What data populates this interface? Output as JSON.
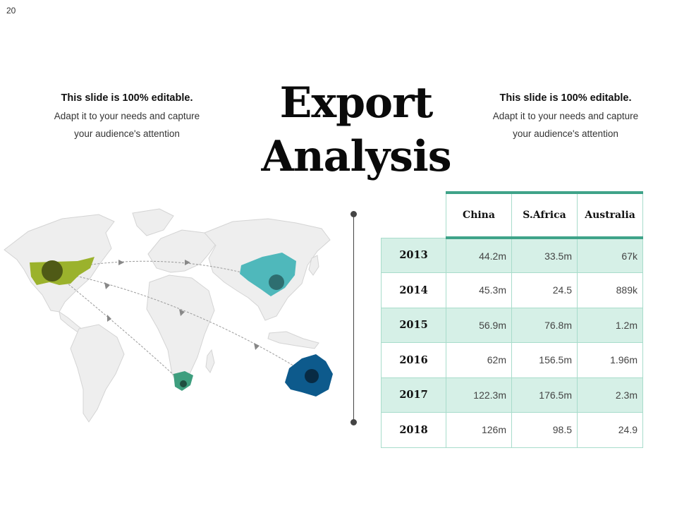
{
  "page": {
    "number": "20"
  },
  "title": {
    "line1": "Export",
    "line2": "Analysis"
  },
  "notes": {
    "left": {
      "heading": "This slide is 100% editable.",
      "line1": "Adapt it to your needs and capture",
      "line2": "your audience's attention"
    },
    "right": {
      "heading": "This slide is 100% editable.",
      "line1": "Adapt it to your needs and capture",
      "line2": "your audience's attention"
    }
  },
  "colors": {
    "usa": "#9bb22c",
    "china": "#4fb8bb",
    "south_africa": "#3e9e7e",
    "australia": "#0d5a8c",
    "table_accent": "#3fa389",
    "table_band": "#d6f0e7",
    "land": "#eeeeee"
  },
  "table": {
    "columns": [
      "China",
      "S.Africa",
      "Australia"
    ],
    "rows": [
      {
        "year": "2013",
        "values": [
          "44.2m",
          "33.5m",
          "67k"
        ]
      },
      {
        "year": "2014",
        "values": [
          "45.3m",
          "24.5",
          "889k"
        ]
      },
      {
        "year": "2015",
        "values": [
          "56.9m",
          "76.8m",
          "1.2m"
        ]
      },
      {
        "year": "2016",
        "values": [
          "62m",
          "156.5m",
          "1.96m"
        ]
      },
      {
        "year": "2017",
        "values": [
          "122.3m",
          "176.5m",
          "2.3m"
        ]
      },
      {
        "year": "2018",
        "values": [
          "126m",
          "98.5",
          "24.9"
        ]
      }
    ]
  }
}
